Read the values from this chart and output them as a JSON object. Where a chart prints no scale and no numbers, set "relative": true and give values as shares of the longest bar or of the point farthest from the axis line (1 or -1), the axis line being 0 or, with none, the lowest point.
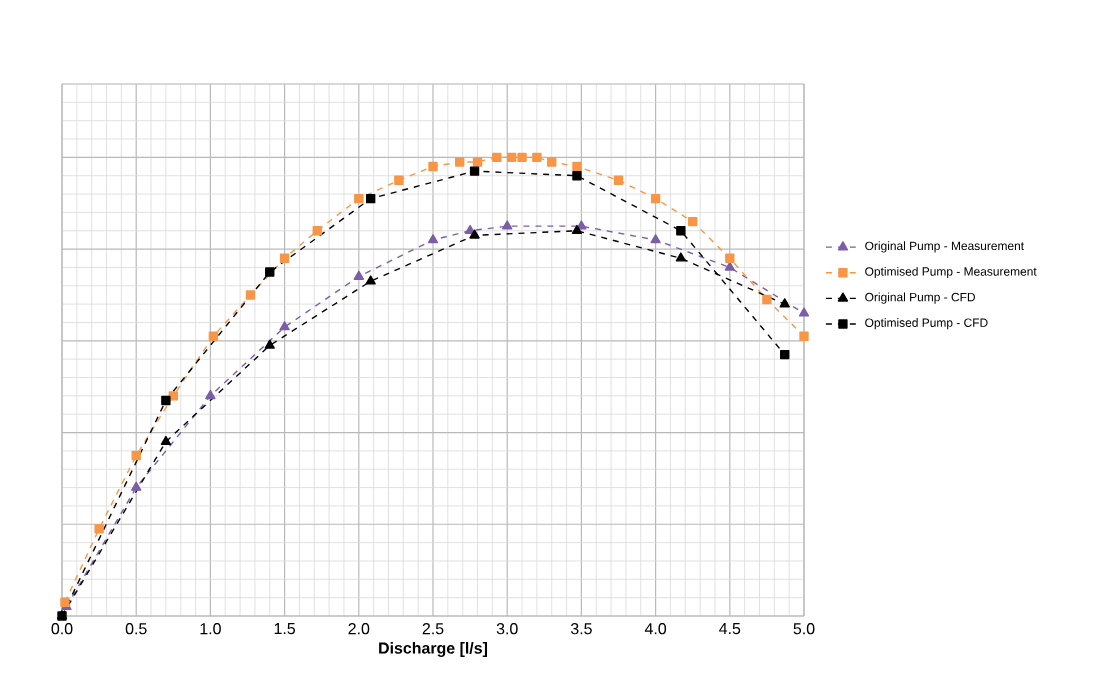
{
  "chart_data": {
    "type": "line",
    "relative": true,
    "xlabel": "Discharge [l/s]",
    "xlim": [
      0,
      5
    ],
    "xticks": [
      {
        "value": 0,
        "label": "0.0"
      },
      {
        "value": 0.5,
        "label": "0.5"
      },
      {
        "value": 1,
        "label": "1.0"
      },
      {
        "value": 1.5,
        "label": "1.5"
      },
      {
        "value": 2,
        "label": "2.0"
      },
      {
        "value": 2.5,
        "label": "2.5"
      },
      {
        "value": 3,
        "label": "3.0"
      },
      {
        "value": 3.5,
        "label": "3.5"
      },
      {
        "value": 4,
        "label": "4.0"
      },
      {
        "value": 4.5,
        "label": "4.5"
      },
      {
        "value": 5,
        "label": "5.0"
      }
    ],
    "grid": true,
    "legend": "right",
    "line_style": "dashed",
    "tick_labels": "x",
    "series": [
      {
        "name": "Original Pump - Measurement",
        "color": "#7b5ea7",
        "marker": "triangle",
        "x": [
          0.03,
          0.5,
          1.0,
          1.5,
          2.0,
          2.5,
          2.75,
          3.0,
          3.5,
          4.0,
          4.5,
          5.0
        ],
        "values": [
          0.02,
          0.28,
          0.48,
          0.63,
          0.74,
          0.82,
          0.84,
          0.85,
          0.85,
          0.82,
          0.76,
          0.66
        ]
      },
      {
        "name": "Optimised Pump - Measurement",
        "color": "#f79646",
        "marker": "square",
        "x": [
          0.02,
          0.25,
          0.5,
          0.75,
          1.02,
          1.27,
          1.5,
          1.72,
          2.0,
          2.27,
          2.5,
          2.68,
          2.8,
          2.93,
          3.03,
          3.1,
          3.2,
          3.3,
          3.47,
          3.75,
          4.0,
          4.25,
          4.5,
          4.75,
          5.0
        ],
        "values": [
          0.03,
          0.19,
          0.35,
          0.48,
          0.61,
          0.7,
          0.78,
          0.84,
          0.91,
          0.95,
          0.98,
          0.99,
          0.99,
          1.0,
          1.0,
          1.0,
          1.0,
          0.99,
          0.98,
          0.95,
          0.91,
          0.86,
          0.78,
          0.69,
          0.61
        ]
      },
      {
        "name": "Original Pump - CFD",
        "color": "#000000",
        "marker": "triangle",
        "x": [
          0,
          0.7,
          1.4,
          2.08,
          2.78,
          3.47,
          4.17,
          4.87
        ],
        "values": [
          0,
          0.38,
          0.59,
          0.73,
          0.83,
          0.84,
          0.78,
          0.68
        ]
      },
      {
        "name": "Optimised Pump - CFD",
        "color": "#000000",
        "marker": "square",
        "x": [
          0,
          0.7,
          1.4,
          2.08,
          2.78,
          3.47,
          4.17,
          4.87
        ],
        "values": [
          0,
          0.47,
          0.75,
          0.91,
          0.97,
          0.96,
          0.84,
          0.57
        ]
      }
    ]
  }
}
